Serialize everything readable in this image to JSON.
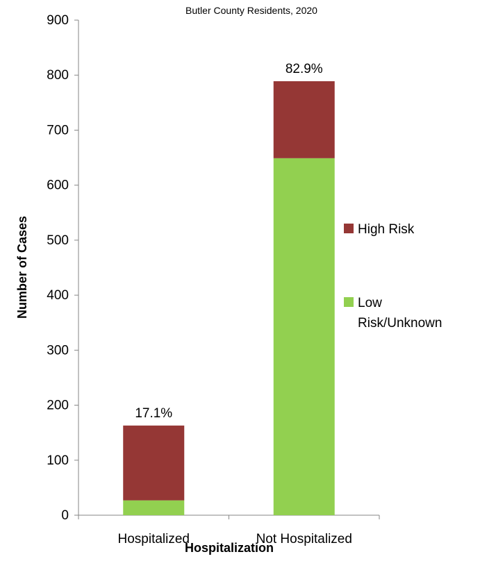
{
  "chart_data": {
    "type": "bar",
    "stacked": true,
    "title": "Butler County Residents, 2020",
    "xlabel": "Hospitalization",
    "ylabel": "Number of Cases",
    "categories": [
      "Hospitalized",
      "Not Hospitalized"
    ],
    "series": [
      {
        "name": "Low Risk/Unknown",
        "color": "#92d050",
        "values": [
          27,
          649
        ]
      },
      {
        "name": "High Risk",
        "color": "#953735",
        "values": [
          136,
          140
        ]
      }
    ],
    "bar_labels": [
      "17.1%",
      "82.9%"
    ],
    "ylim": [
      0,
      900
    ],
    "yticks": [
      0,
      100,
      200,
      300,
      400,
      500,
      600,
      700,
      800,
      900
    ],
    "grid": false,
    "legend": {
      "position": "right",
      "entries": [
        {
          "label_lines": [
            "High Risk"
          ],
          "color": "#953735"
        },
        {
          "label_lines": [
            "Low",
            "Risk/Unknown"
          ],
          "color": "#92d050"
        }
      ]
    }
  }
}
